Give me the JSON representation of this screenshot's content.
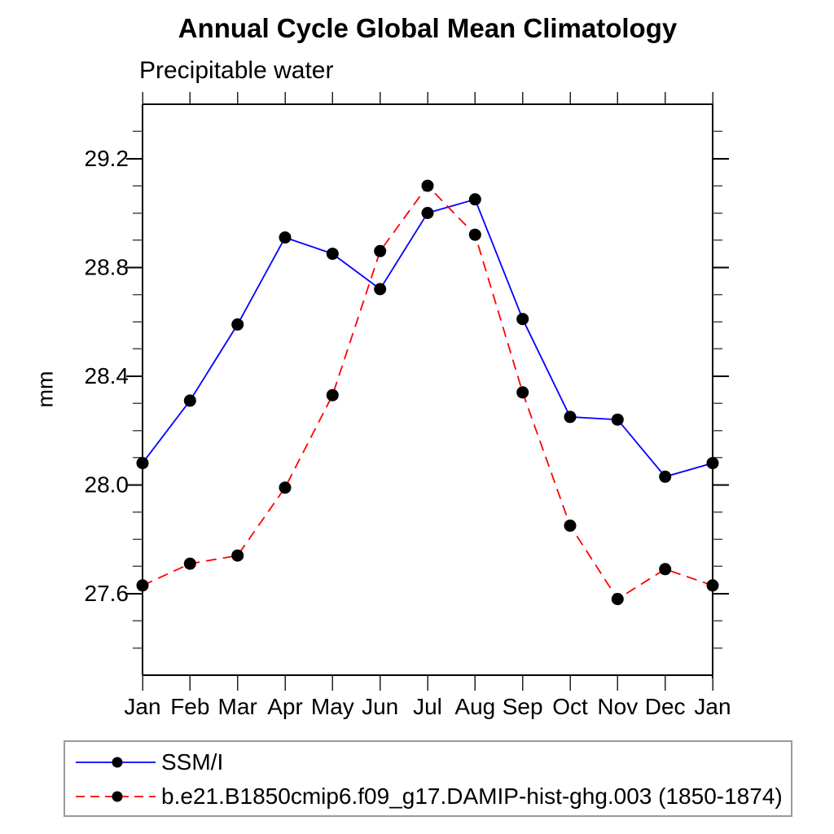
{
  "title": "Annual Cycle Global Mean Climatology",
  "subtitle": "Precipitable water",
  "colors": {
    "series1": "#0000ff",
    "series2": "#ff0000",
    "marker": "#000000",
    "axis": "#000000",
    "legend_border": "#9a9a9a"
  },
  "chart_data": {
    "type": "line",
    "title": "Annual Cycle Global Mean Climatology",
    "subtitle": "Precipitable water",
    "xlabel": "",
    "ylabel": "mm",
    "categories": [
      "Jan",
      "Feb",
      "Mar",
      "Apr",
      "May",
      "Jun",
      "Jul",
      "Aug",
      "Sep",
      "Oct",
      "Nov",
      "Dec",
      "Jan"
    ],
    "ylim": [
      27.3,
      29.4
    ],
    "yticks_major": [
      27.6,
      28.0,
      28.4,
      28.8,
      29.2
    ],
    "ytick_minor_step": 0.1,
    "grid": false,
    "legend_position": "bottom-left-box",
    "series": [
      {
        "name": "SSM/I",
        "color": "#0000ff",
        "line_style": "solid",
        "marker": "circle",
        "marker_color": "#000000",
        "values": [
          28.08,
          28.31,
          28.59,
          28.91,
          28.85,
          28.72,
          29.0,
          29.05,
          28.61,
          28.25,
          28.24,
          28.03,
          28.08
        ]
      },
      {
        "name": "b.e21.B1850cmip6.f09_g17.DAMIP-hist-ghg.003 (1850-1874)",
        "color": "#ff0000",
        "line_style": "dashed",
        "marker": "circle",
        "marker_color": "#000000",
        "values": [
          27.63,
          27.71,
          27.74,
          27.99,
          28.33,
          28.86,
          29.1,
          28.92,
          28.34,
          27.85,
          27.58,
          27.69,
          27.63
        ]
      }
    ]
  }
}
